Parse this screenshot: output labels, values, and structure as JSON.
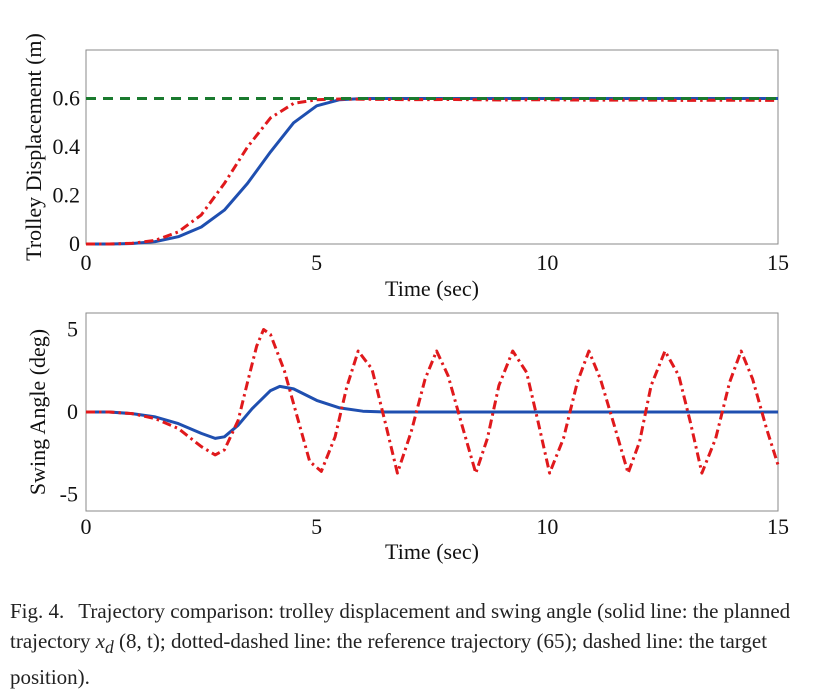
{
  "figure": {
    "caption": {
      "label": "Fig. 4.",
      "text_before_math": "Trajectory comparison: trolley displacement and swing angle (solid line: the planned trajectory ",
      "math_expr": "x",
      "math_sub": "d",
      "math_args": "(8, t)",
      "text_after_math": "; dotted-dashed line: the reference trajectory (65); dashed line: the target position)."
    }
  },
  "colors": {
    "planned": "#1f4fb0",
    "reference": "#e0191c",
    "target": "#1a7a2e",
    "axis": "#555555"
  },
  "chart_data": [
    {
      "type": "line",
      "xlabel": "Time (sec)",
      "ylabel": "Trolley Displacement (m)",
      "xlim": [
        0,
        15
      ],
      "ylim": [
        0,
        0.8
      ],
      "xticks": [
        0,
        5,
        10,
        15
      ],
      "yticks": [
        0,
        0.2,
        0.4,
        0.6
      ],
      "ytick_labels": [
        "0",
        "0.2",
        "0.4",
        "0.6"
      ],
      "grid": false,
      "series": [
        {
          "style": "solid",
          "color": "#1f4fb0",
          "x": [
            0,
            0.5,
            1,
            1.5,
            2,
            2.5,
            3,
            3.5,
            4,
            4.5,
            5,
            5.5,
            6,
            7,
            8,
            9,
            10,
            11,
            12,
            13,
            14,
            15
          ],
          "y": [
            0,
            0,
            0.002,
            0.01,
            0.03,
            0.07,
            0.14,
            0.25,
            0.38,
            0.5,
            0.57,
            0.595,
            0.6,
            0.6,
            0.6,
            0.6,
            0.6,
            0.6,
            0.6,
            0.6,
            0.6,
            0.6
          ]
        },
        {
          "style": "dashdot",
          "color": "#e0191c",
          "x": [
            0,
            0.5,
            1,
            1.5,
            2,
            2.5,
            3,
            3.5,
            4,
            4.5,
            5,
            5.5,
            6,
            7,
            8,
            9,
            10,
            11,
            12,
            13,
            14,
            15
          ],
          "y": [
            0,
            0,
            0.003,
            0.015,
            0.05,
            0.12,
            0.25,
            0.4,
            0.52,
            0.58,
            0.595,
            0.598,
            0.597,
            0.595,
            0.596,
            0.594,
            0.595,
            0.593,
            0.594,
            0.592,
            0.593,
            0.592
          ]
        },
        {
          "style": "dashed",
          "color": "#1a7a2e",
          "x": [
            0,
            15
          ],
          "y": [
            0.6,
            0.6
          ]
        }
      ]
    },
    {
      "type": "line",
      "xlabel": "Time (sec)",
      "ylabel": "Swing Angle (deg)",
      "xlim": [
        0,
        15
      ],
      "ylim": [
        -6,
        6
      ],
      "xticks": [
        0,
        5,
        10,
        15
      ],
      "yticks": [
        -5,
        0,
        5
      ],
      "ytick_labels": [
        "-5",
        "0",
        "5"
      ],
      "grid": false,
      "series": [
        {
          "style": "solid",
          "color": "#1f4fb0",
          "x": [
            0,
            0.5,
            1,
            1.5,
            2,
            2.5,
            2.8,
            3,
            3.3,
            3.6,
            4,
            4.2,
            4.5,
            5,
            5.5,
            6,
            6.5,
            7,
            8,
            9,
            10,
            11,
            12,
            13,
            14,
            15
          ],
          "y": [
            0,
            0,
            -0.1,
            -0.3,
            -0.7,
            -1.3,
            -1.6,
            -1.5,
            -0.8,
            0.2,
            1.3,
            1.55,
            1.4,
            0.7,
            0.25,
            0.05,
            0,
            0,
            0,
            0,
            0,
            0,
            0,
            0,
            0,
            0
          ]
        },
        {
          "style": "dashdot",
          "color": "#e0191c",
          "x": [
            0,
            0.5,
            1,
            1.5,
            2,
            2.5,
            2.8,
            3,
            3.3,
            3.5,
            3.7,
            3.85,
            4,
            4.3,
            4.6,
            4.85,
            5.1,
            5.4,
            5.65,
            5.9,
            6.2,
            6.5,
            6.75,
            7.05,
            7.35,
            7.6,
            7.85,
            8.15,
            8.45,
            8.7,
            8.95,
            9.25,
            9.55,
            9.8,
            10.05,
            10.35,
            10.65,
            10.9,
            11.15,
            11.45,
            11.75,
            12.0,
            12.25,
            12.55,
            12.85,
            13.1,
            13.35,
            13.65,
            13.95,
            14.2,
            14.45,
            14.75,
            15
          ],
          "y": [
            0,
            0,
            -0.1,
            -0.4,
            -1.0,
            -2.1,
            -2.6,
            -2.3,
            -0.5,
            1.8,
            4.0,
            5.0,
            4.7,
            2.5,
            -0.5,
            -3.0,
            -3.6,
            -1.5,
            1.5,
            3.7,
            2.6,
            -0.8,
            -3.7,
            -1.2,
            2.0,
            3.7,
            2.2,
            -0.8,
            -3.7,
            -1.6,
            1.6,
            3.7,
            2.4,
            -0.6,
            -3.7,
            -1.6,
            1.8,
            3.7,
            2.0,
            -0.8,
            -3.7,
            -1.8,
            1.6,
            3.7,
            2.2,
            -0.6,
            -3.7,
            -1.6,
            1.8,
            3.7,
            2.0,
            -1.0,
            -3.2
          ]
        }
      ]
    }
  ]
}
